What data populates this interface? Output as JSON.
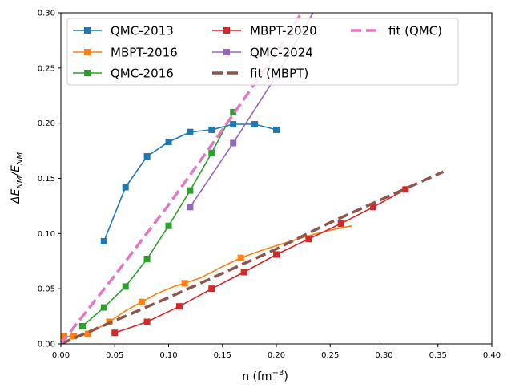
{
  "chart_data": {
    "type": "line",
    "xlabel": "n (fm$^{-3}$)",
    "xlabel_parts": {
      "main": "n (fm",
      "sup": "−3",
      "close": ")"
    },
    "ylabel": "ΔE_NM/E_NM",
    "ylabel_parts": {
      "delta": "ΔE",
      "sub1": "NM",
      "slash": "/E",
      "sub2": "NM"
    },
    "xlim": [
      0.0,
      0.4
    ],
    "ylim": [
      0.0,
      0.3
    ],
    "xticks": [
      "0.00",
      "0.05",
      "0.10",
      "0.15",
      "0.20",
      "0.25",
      "0.30",
      "0.35",
      "0.40"
    ],
    "yticks": [
      "0.00",
      "0.05",
      "0.10",
      "0.15",
      "0.20",
      "0.25",
      "0.30"
    ],
    "grid": false,
    "legend_position": "top",
    "legend_columns": 3,
    "series": [
      {
        "name": "QMC-2013",
        "color": "#1f77b4",
        "style": "line-marker",
        "x": [
          0.04,
          0.06,
          0.08,
          0.1,
          0.12,
          0.14,
          0.16,
          0.18,
          0.2
        ],
        "y": [
          0.093,
          0.142,
          0.17,
          0.183,
          0.192,
          0.194,
          0.199,
          0.199,
          0.194
        ],
        "markers": [
          0.04,
          0.06,
          0.08,
          0.1,
          0.12,
          0.14,
          0.16,
          0.18,
          0.2
        ]
      },
      {
        "name": "MBPT-2016",
        "color": "#ff7f0e",
        "style": "line-marker",
        "x": [
          0.003,
          0.012,
          0.025,
          0.045,
          0.06,
          0.075,
          0.09,
          0.105,
          0.115,
          0.13,
          0.15,
          0.167,
          0.19,
          0.21,
          0.23,
          0.25,
          0.27
        ],
        "y": [
          0.007,
          0.007,
          0.009,
          0.02,
          0.03,
          0.038,
          0.046,
          0.052,
          0.055,
          0.06,
          0.07,
          0.078,
          0.086,
          0.092,
          0.098,
          0.103,
          0.107
        ],
        "markers": [
          0.003,
          0.012,
          0.025,
          0.045,
          0.075,
          0.115,
          0.167
        ]
      },
      {
        "name": "QMC-2016",
        "color": "#2ca02c",
        "style": "line-marker",
        "x": [
          0.02,
          0.04,
          0.06,
          0.08,
          0.1,
          0.12,
          0.14,
          0.16
        ],
        "y": [
          0.016,
          0.033,
          0.052,
          0.077,
          0.107,
          0.139,
          0.173,
          0.21
        ],
        "markers": [
          0.02,
          0.04,
          0.06,
          0.08,
          0.1,
          0.12,
          0.14,
          0.16
        ]
      },
      {
        "name": "MBPT-2020",
        "color": "#d62728",
        "style": "line-marker",
        "x": [
          0.05,
          0.08,
          0.11,
          0.14,
          0.17,
          0.2,
          0.23,
          0.26,
          0.29,
          0.32
        ],
        "y": [
          0.01,
          0.02,
          0.034,
          0.05,
          0.065,
          0.081,
          0.095,
          0.109,
          0.124,
          0.14
        ],
        "markers": [
          0.05,
          0.08,
          0.11,
          0.14,
          0.17,
          0.2,
          0.23,
          0.26,
          0.29,
          0.32
        ]
      },
      {
        "name": "QMC-2024",
        "color": "#9467bd",
        "style": "line-marker",
        "x": [
          0.12,
          0.16,
          0.2,
          0.24
        ],
        "y": [
          0.124,
          0.182,
          0.243,
          0.31
        ],
        "markers": [
          0.12,
          0.16,
          0.2,
          0.24
        ]
      },
      {
        "name": "fit (MBPT)",
        "color": "#8c564b",
        "style": "dashed",
        "x": [
          0.0,
          0.05,
          0.1,
          0.15,
          0.2,
          0.25,
          0.3,
          0.355
        ],
        "y": [
          0.0,
          0.021,
          0.042,
          0.064,
          0.086,
          0.11,
          0.132,
          0.156
        ]
      },
      {
        "name": "fit (QMC)",
        "color": "#e377c2",
        "style": "dashed",
        "x": [
          0.0,
          0.05,
          0.1,
          0.15,
          0.2,
          0.23
        ],
        "y": [
          0.0,
          0.062,
          0.126,
          0.194,
          0.264,
          0.31
        ]
      }
    ]
  }
}
